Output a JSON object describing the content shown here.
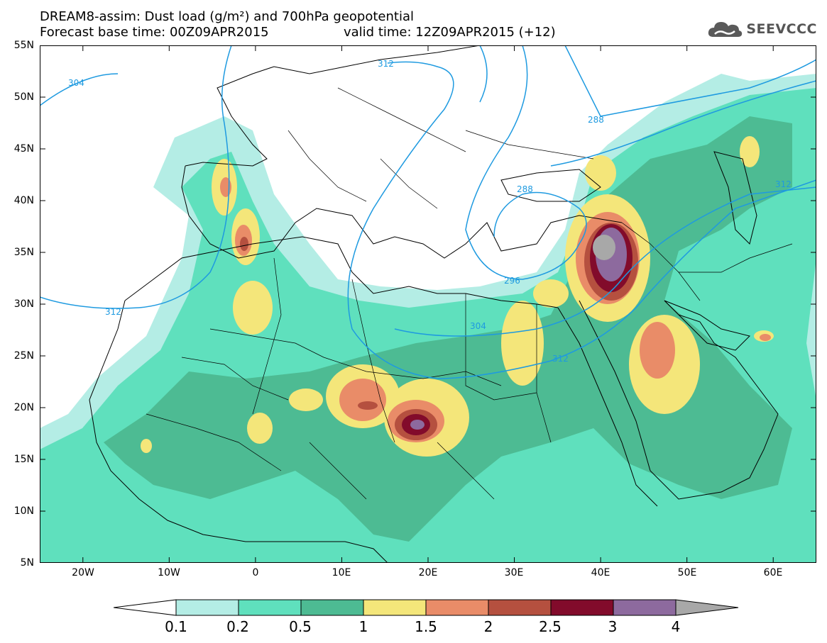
{
  "title": {
    "line1": "DREAM8-assim: Dust load (g/m²) and 700hPa geopotential",
    "line2_left": "Forecast base time: 00Z09APR2015",
    "line2_right": "valid time: 12Z09APR2015 (+12)"
  },
  "logo": {
    "text": "SEEVCCC",
    "icon": "cloud-icon",
    "color": "#555555"
  },
  "map": {
    "lon_range": [
      -25,
      65
    ],
    "lat_range": [
      5,
      55
    ],
    "lat_labels": [
      "55N",
      "50N",
      "45N",
      "40N",
      "35N",
      "30N",
      "25N",
      "20N",
      "15N",
      "10N",
      "5N"
    ],
    "lon_labels": [
      "20W",
      "10W",
      "0",
      "10E",
      "20E",
      "30E",
      "40E",
      "50E",
      "60E"
    ],
    "contours": [
      {
        "label": "304"
      },
      {
        "label": "312"
      },
      {
        "label": "288"
      },
      {
        "label": "288"
      },
      {
        "label": "296"
      },
      {
        "label": "304"
      },
      {
        "label": "312"
      },
      {
        "label": "312"
      },
      {
        "label": "312"
      }
    ],
    "contour_color": "#1e9ae0"
  },
  "colorbar": {
    "labels": [
      "0.1",
      "0.2",
      "0.5",
      "1",
      "1.5",
      "2",
      "2.5",
      "3",
      "4"
    ],
    "colors": [
      "#ffffff",
      "#b4ede5",
      "#5fe0bd",
      "#4dbb93",
      "#f4e67a",
      "#e98c68",
      "#b5503f",
      "#820b2b",
      "#8d6a9e",
      "#a8a8a8"
    ]
  }
}
